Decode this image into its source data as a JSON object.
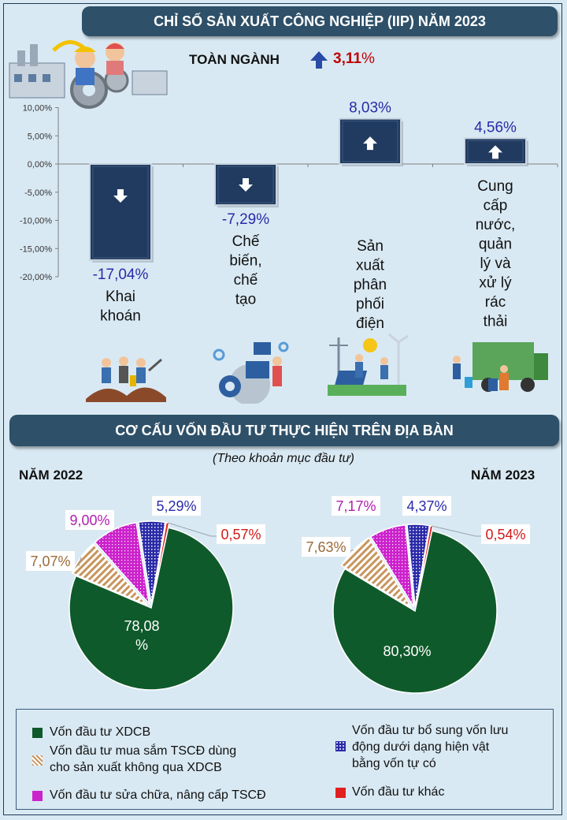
{
  "header": {
    "title": "CHỈ SỐ SẢN XUẤT CÔNG NGHIỆP (IIP) NĂM 2023"
  },
  "overall": {
    "label": "TOÀN NGÀNH",
    "value": "3,11",
    "unit": "%",
    "direction": "up"
  },
  "colors": {
    "banner": "#2e5068",
    "bar": "#213a5f",
    "dark_green": "#0f5a2b",
    "tan": "#c8955e",
    "magenta": "#cc22cc",
    "blue": "#2a2aa8",
    "red": "#e02020",
    "accent_red": "#c00000"
  },
  "chart_data": [
    {
      "type": "bar",
      "title": "CHỈ SỐ SẢN XUẤT CÔNG NGHIỆP (IIP) NĂM 2023",
      "categories": [
        "Khai khoán",
        "Chế biến, chế tạo",
        "Sản xuất phân phối điện",
        "Cung cấp nước, quản lý và xử lý rác thải"
      ],
      "category_lines": [
        [
          "Khai",
          "khoán"
        ],
        [
          "Chế",
          "biến,",
          "chế",
          "tạo"
        ],
        [
          "Sản",
          "xuất",
          "phân",
          "phối",
          "điện"
        ],
        [
          "Cung",
          "cấp",
          "nước,",
          "quản",
          "lý và",
          "xử lý",
          "rác",
          "thải"
        ]
      ],
      "values": [
        -17.04,
        -7.29,
        8.03,
        4.56
      ],
      "value_labels": [
        "-17,04%",
        "-7,29%",
        "8,03%",
        "4,56%"
      ],
      "yticks": [
        10,
        5,
        0,
        -5,
        -10,
        -15,
        -20
      ],
      "ytick_labels": [
        "10,00%",
        "5,00%",
        "0,00%",
        "-5,00%",
        "-10,00%",
        "-15,00%",
        "-20,00%"
      ],
      "ylim": [
        -20,
        10
      ],
      "grid": false
    },
    {
      "type": "pie",
      "title": "CƠ CẤU VỐN ĐẦU TƯ THỰC HIỆN TRÊN ĐỊA BÀN",
      "subtitle": "(Theo khoản mục đầu tư)",
      "panel": "NĂM 2022",
      "labels": [
        "Vốn đầu tư XDCB",
        "Vốn đầu tư mua sắm TSCĐ dùng cho sản xuất không qua XDCB",
        "Vốn đầu tư sửa chữa, nâng cấp TSCĐ",
        "Vốn đầu tư bổ sung vốn lưu động dưới dạng hiện vật bằng vốn tự có",
        "Vốn đầu tư khác"
      ],
      "values": [
        78.08,
        7.07,
        9.0,
        5.29,
        0.57
      ],
      "value_labels": [
        "78,08\n%",
        "7,07%",
        "9,00%",
        "5,29%",
        "0,57%"
      ]
    },
    {
      "type": "pie",
      "title": "CƠ CẤU VỐN ĐẦU TƯ THỰC HIỆN TRÊN ĐỊA BÀN",
      "subtitle": "(Theo khoản mục đầu tư)",
      "panel": "NĂM 2023",
      "labels": [
        "Vốn đầu tư XDCB",
        "Vốn đầu tư mua sắm TSCĐ dùng cho sản xuất không qua XDCB",
        "Vốn đầu tư sửa chữa, nâng cấp TSCĐ",
        "Vốn đầu tư bổ sung vốn lưu động dưới dạng hiện vật bằng vốn tự có",
        "Vốn đầu tư khác"
      ],
      "values": [
        80.3,
        7.63,
        7.17,
        4.37,
        0.54
      ],
      "value_labels": [
        "80,30%",
        "7,63%",
        "7,17%",
        "4,37%",
        "0,54%"
      ]
    }
  ],
  "section2": {
    "title": "CƠ CẤU VỐN ĐẦU TƯ THỰC HIỆN TRÊN ĐỊA BÀN",
    "subtitle": "(Theo khoản mục đầu tư)",
    "year_left": "NĂM 2022",
    "year_right": "NĂM 2023"
  },
  "legend": {
    "items": [
      {
        "text": "Vốn đầu tư XDCB"
      },
      {
        "text": "Vốn đầu tư mua sắm TSCĐ dùng",
        "text2": "cho sản xuất không qua XDCB"
      },
      {
        "text": "Vốn đầu tư sửa chữa, nâng cấp TSCĐ"
      },
      {
        "text": "Vốn đầu tư bổ sung vốn lưu",
        "text2": "động dưới dạng hiện vật",
        "text3": "bằng vốn tự có"
      },
      {
        "text": "Vốn đầu tư khác"
      }
    ]
  },
  "icons": [
    "industry-illustration",
    "mining-workers-illustration",
    "manufacturing-robot-illustration",
    "electricity-solar-wind-illustration",
    "garbage-truck-illustration"
  ]
}
